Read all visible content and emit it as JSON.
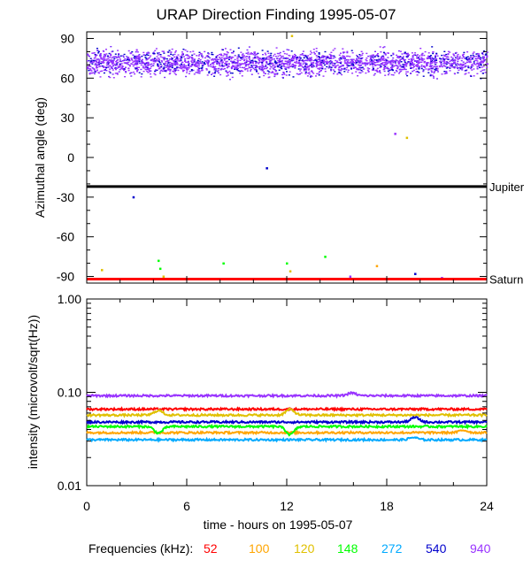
{
  "title": "URAP Direction Finding  1995-05-07",
  "xlabel": "time - hours on 1995-05-07",
  "freq_label": "Frequencies (kHz):",
  "chart_data": [
    {
      "type": "scatter",
      "title": "URAP Direction Finding  1995-05-07",
      "xlabel": "",
      "ylabel": "Azimuthal angle (deg)",
      "xlim": [
        0,
        24
      ],
      "ylim": [
        -95,
        95
      ],
      "y_ticks": [
        -90,
        -60,
        -30,
        0,
        30,
        60,
        90
      ],
      "x_ticks": [
        0,
        6,
        12,
        18,
        24
      ],
      "grid": false,
      "scatter_band": {
        "series": "940",
        "y_center": 72,
        "y_spread": 7,
        "x_range": [
          0,
          24
        ]
      },
      "reference_lines": [
        {
          "name": "Jupiter",
          "y": -22,
          "color": "#000000"
        },
        {
          "name": "Saturn",
          "y": -92,
          "color": "#ff0000"
        }
      ],
      "scatter_points": [
        {
          "x": 10.8,
          "y": -8,
          "series": "540"
        },
        {
          "x": 2.8,
          "y": -30,
          "series": "540"
        },
        {
          "x": 18.5,
          "y": 18,
          "series": "940"
        },
        {
          "x": 19.2,
          "y": 15,
          "series": "120"
        },
        {
          "x": 14.3,
          "y": -75,
          "series": "148"
        },
        {
          "x": 8.2,
          "y": -80,
          "series": "148"
        },
        {
          "x": 17.4,
          "y": -82,
          "series": "100"
        },
        {
          "x": 0.9,
          "y": -85,
          "series": "120"
        },
        {
          "x": 4.3,
          "y": -78,
          "series": "148"
        },
        {
          "x": 4.4,
          "y": -84,
          "series": "148"
        },
        {
          "x": 4.6,
          "y": -90,
          "series": "120"
        },
        {
          "x": 12.0,
          "y": -80,
          "series": "148"
        },
        {
          "x": 12.2,
          "y": -86,
          "series": "120"
        },
        {
          "x": 12.4,
          "y": -92,
          "series": "148"
        },
        {
          "x": 15.8,
          "y": -90,
          "series": "940"
        },
        {
          "x": 19.7,
          "y": -88,
          "series": "540"
        },
        {
          "x": 21.3,
          "y": -91,
          "series": "940"
        },
        {
          "x": 12.3,
          "y": 92,
          "series": "120"
        }
      ]
    },
    {
      "type": "line",
      "title": "",
      "xlabel": "time - hours on 1995-05-07",
      "ylabel": "intensity (microvolt/sqrt(Hz))",
      "xlim": [
        0,
        24
      ],
      "ylim": [
        0.01,
        1.0
      ],
      "log_y": true,
      "y_ticks": [
        1.0,
        0.1,
        0.01
      ],
      "y_tick_labels": [
        "1.00",
        "0.10",
        "0.01"
      ],
      "x_ticks": [
        0,
        6,
        12,
        18,
        24
      ],
      "grid": false,
      "series": [
        {
          "name": "52",
          "base": 0.066
        },
        {
          "name": "100",
          "base": 0.037
        },
        {
          "name": "120",
          "base": 0.057
        },
        {
          "name": "148",
          "base": 0.043
        },
        {
          "name": "272",
          "base": 0.031
        },
        {
          "name": "540",
          "base": 0.048
        },
        {
          "name": "940",
          "base": 0.092
        }
      ],
      "bumps": [
        {
          "series": "120",
          "x": 4.3,
          "factor": 1.12
        },
        {
          "series": "148",
          "x": 4.3,
          "factor": 0.85
        },
        {
          "series": "120",
          "x": 12.2,
          "factor": 1.15
        },
        {
          "series": "148",
          "x": 12.2,
          "factor": 0.82
        },
        {
          "series": "940",
          "x": 15.9,
          "factor": 1.07
        },
        {
          "series": "540",
          "x": 19.7,
          "factor": 1.12
        },
        {
          "series": "272",
          "x": 19.6,
          "factor": 1.06
        },
        {
          "series": "100",
          "x": 22.6,
          "factor": 1.06
        }
      ]
    }
  ],
  "legend": {
    "items": [
      {
        "label": "52",
        "color": "#ff0000"
      },
      {
        "label": "100",
        "color": "#ffa500"
      },
      {
        "label": "120",
        "color": "#e0c000"
      },
      {
        "label": "148",
        "color": "#00ff00"
      },
      {
        "label": "272",
        "color": "#00aaff"
      },
      {
        "label": "540",
        "color": "#0000cc"
      },
      {
        "label": "940",
        "color": "#9933ff"
      }
    ]
  }
}
